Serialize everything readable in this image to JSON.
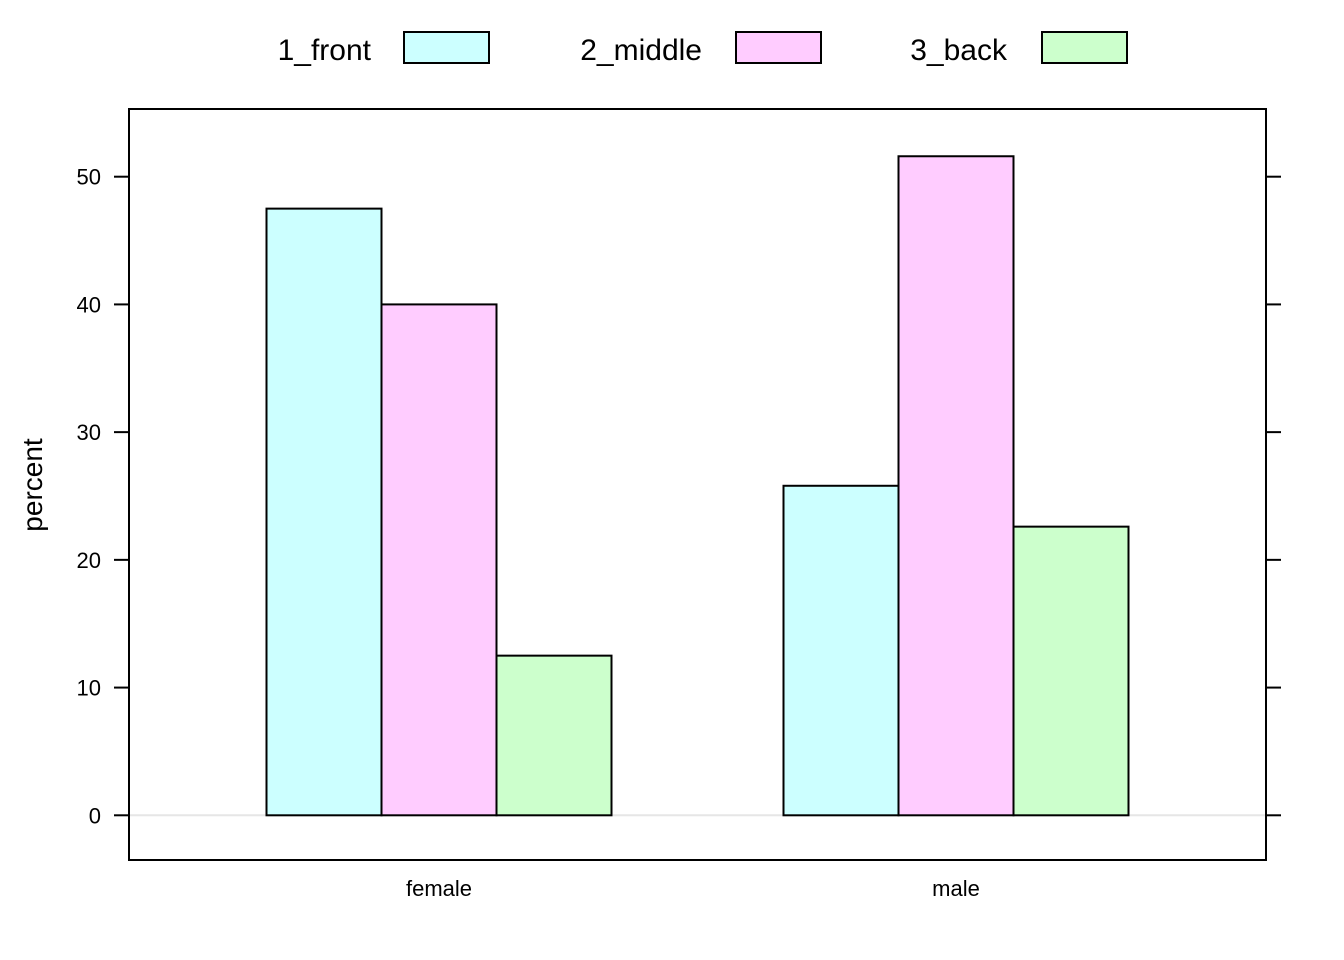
{
  "chart_data": {
    "type": "bar",
    "title": "",
    "xlabel": "",
    "ylabel": "percent",
    "categories": [
      "female",
      "male"
    ],
    "series": [
      {
        "name": "1_front",
        "color": "#ccffff",
        "values": [
          47.5,
          25.8
        ]
      },
      {
        "name": "2_middle",
        "color": "#ffccff",
        "values": [
          40.0,
          51.6
        ]
      },
      {
        "name": "3_back",
        "color": "#ccffcc",
        "values": [
          12.5,
          22.6
        ]
      }
    ],
    "ylim": [
      -3.5,
      55.3
    ],
    "yticks": [
      "0",
      "10",
      "20",
      "30",
      "40",
      "50"
    ],
    "grid": false,
    "zero_line": true,
    "legend_position": "top"
  }
}
